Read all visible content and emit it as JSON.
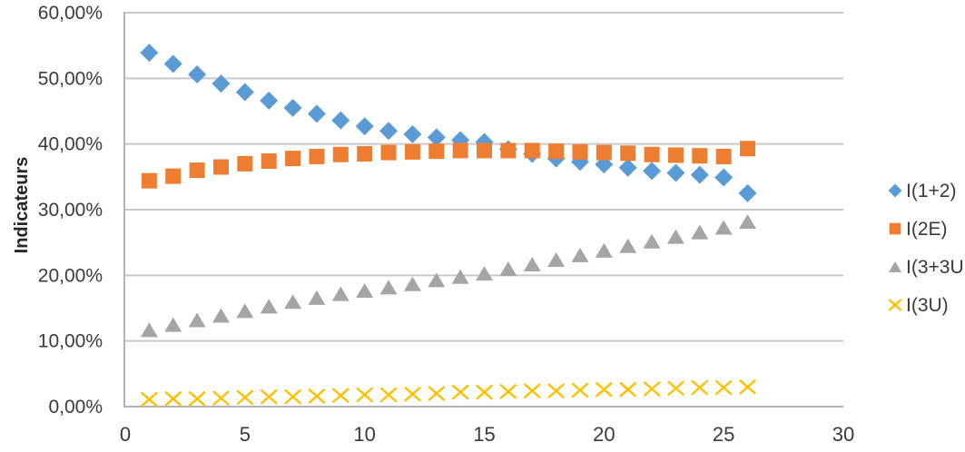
{
  "chart_data": {
    "type": "scatter",
    "title": "",
    "xlabel": "",
    "ylabel": "Indicateurs",
    "xlim": [
      0,
      30
    ],
    "ylim": [
      0,
      60
    ],
    "grid": "horizontal",
    "legend_position": "right",
    "x": [
      1,
      2,
      3,
      4,
      5,
      6,
      7,
      8,
      9,
      10,
      11,
      12,
      13,
      14,
      15,
      16,
      17,
      18,
      19,
      20,
      21,
      22,
      23,
      24,
      25,
      26
    ],
    "series": [
      {
        "name": "I(1+2)",
        "marker": "diamond",
        "color": "#5B9BD5",
        "values": [
          53.9,
          52.2,
          50.6,
          49.2,
          47.9,
          46.6,
          45.5,
          44.6,
          43.6,
          42.7,
          42.0,
          41.5,
          41.0,
          40.6,
          40.3,
          39.2,
          38.5,
          37.8,
          37.3,
          36.9,
          36.4,
          35.9,
          35.6,
          35.3,
          34.9,
          32.5
        ]
      },
      {
        "name": "I(2E)",
        "marker": "square",
        "color": "#ED7D31",
        "values": [
          34.4,
          35.1,
          36.0,
          36.5,
          37.0,
          37.4,
          37.8,
          38.1,
          38.4,
          38.5,
          38.7,
          38.8,
          38.9,
          39.0,
          39.0,
          39.0,
          39.0,
          38.9,
          38.8,
          38.7,
          38.6,
          38.4,
          38.3,
          38.2,
          38.1,
          39.3
        ]
      },
      {
        "name": "I(3+3U",
        "marker": "triangle",
        "color": "#A5A5A5",
        "values": [
          11.7,
          12.5,
          13.2,
          13.9,
          14.6,
          15.3,
          16.0,
          16.6,
          17.2,
          17.7,
          18.2,
          18.7,
          19.3,
          19.8,
          20.3,
          21.0,
          21.7,
          22.4,
          23.1,
          23.8,
          24.5,
          25.2,
          25.9,
          26.6,
          27.3,
          28.2
        ]
      },
      {
        "name": "I(3U)",
        "marker": "x",
        "color": "#FFC000",
        "values": [
          1.1,
          1.2,
          1.2,
          1.3,
          1.4,
          1.5,
          1.5,
          1.6,
          1.7,
          1.8,
          1.8,
          1.9,
          2.0,
          2.2,
          2.2,
          2.3,
          2.4,
          2.4,
          2.5,
          2.6,
          2.6,
          2.7,
          2.8,
          2.9,
          2.9,
          3.0
        ]
      }
    ],
    "yticks": {
      "values": [
        0,
        10,
        20,
        30,
        40,
        50,
        60
      ],
      "labels": [
        "0,00%",
        "10,00%",
        "20,00%",
        "30,00%",
        "40,00%",
        "50,00%",
        "60,00%"
      ]
    },
    "xticks": {
      "values": [
        0,
        5,
        10,
        15,
        20,
        25,
        30
      ],
      "labels": [
        "0",
        "5",
        "10",
        "15",
        "20",
        "25",
        "30"
      ]
    },
    "colors": {
      "gridline": "#C9C9C9",
      "axis_line": "#B3B3B3",
      "tick_text": "#3A3A3A",
      "legend_text": "#3A3A3A",
      "axis_title_text": "#262626"
    }
  }
}
